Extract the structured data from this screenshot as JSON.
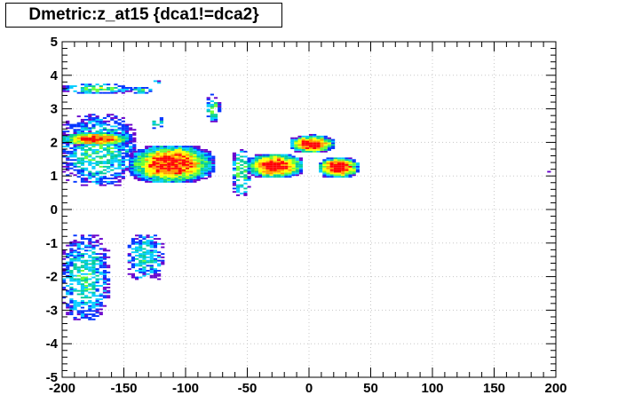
{
  "chart_data": {
    "type": "heatmap",
    "title": "Dmetric:z_at15 {dca1!=dca2}",
    "xlabel": "",
    "ylabel": "",
    "xlim": [
      -200,
      200
    ],
    "ylim": [
      -5,
      5
    ],
    "grid": true,
    "x_ticks": [
      "-200",
      "-150",
      "-100",
      "-50",
      "0",
      "50",
      "100",
      "150",
      "200"
    ],
    "y_ticks": [
      "-5",
      "-4",
      "-3",
      "-2",
      "-1",
      "0",
      "1",
      "2",
      "3",
      "4",
      "5"
    ],
    "palette": [
      "#ff0000",
      "#ff9900",
      "#ffff00",
      "#66ff33",
      "#00cc99",
      "#00ccff",
      "#0033ff",
      "#6600cc"
    ],
    "clusters": [
      {
        "name": "upper-left-band",
        "x": [
          -200,
          -145
        ],
        "y": [
          3.45,
          3.75
        ],
        "peak": 0.55
      },
      {
        "name": "upper-left-stub",
        "x": [
          -145,
          -128
        ],
        "y": [
          3.45,
          3.65
        ],
        "peak": 0.45
      },
      {
        "name": "upper-left-dot",
        "x": [
          -126,
          -120
        ],
        "y": [
          3.75,
          3.85
        ],
        "peak": 0.3
      },
      {
        "name": "small-blob-122",
        "x": [
          -127,
          -118
        ],
        "y": [
          2.4,
          2.8
        ],
        "peak": 0.5
      },
      {
        "name": "small-blob-78",
        "x": [
          -83,
          -72
        ],
        "y": [
          2.6,
          3.4
        ],
        "peak": 0.5
      },
      {
        "name": "left-scatter",
        "x": [
          -200,
          -140
        ],
        "y": [
          0.7,
          2.8
        ],
        "peak": 0.45
      },
      {
        "name": "left-ridge",
        "x": [
          -200,
          -145
        ],
        "y": [
          1.9,
          2.3
        ],
        "peak": 0.95
      },
      {
        "name": "diagonal-band",
        "x": [
          -145,
          -78
        ],
        "y": [
          0.8,
          1.9
        ],
        "peak": 0.95
      },
      {
        "name": "central-arc",
        "x": [
          -62,
          -48
        ],
        "y": [
          0.4,
          1.8
        ],
        "peak": 0.55
      },
      {
        "name": "central-left-block",
        "x": [
          -50,
          -5
        ],
        "y": [
          0.95,
          1.65
        ],
        "peak": 1.0
      },
      {
        "name": "central-upper-block",
        "x": [
          -15,
          20
        ],
        "y": [
          1.7,
          2.2
        ],
        "peak": 1.0
      },
      {
        "name": "central-right-block",
        "x": [
          8,
          40
        ],
        "y": [
          0.95,
          1.55
        ],
        "peak": 1.0
      },
      {
        "name": "lower-left-scatter",
        "x": [
          -200,
          -163
        ],
        "y": [
          -3.3,
          -0.8
        ],
        "peak": 0.45
      },
      {
        "name": "lower-left-blob",
        "x": [
          -147,
          -118
        ],
        "y": [
          -2.1,
          -0.7
        ],
        "peak": 0.4
      },
      {
        "name": "isolated-point",
        "x": [
          193,
          196
        ],
        "y": [
          1.1,
          1.2
        ],
        "peak": 0.2
      }
    ]
  }
}
